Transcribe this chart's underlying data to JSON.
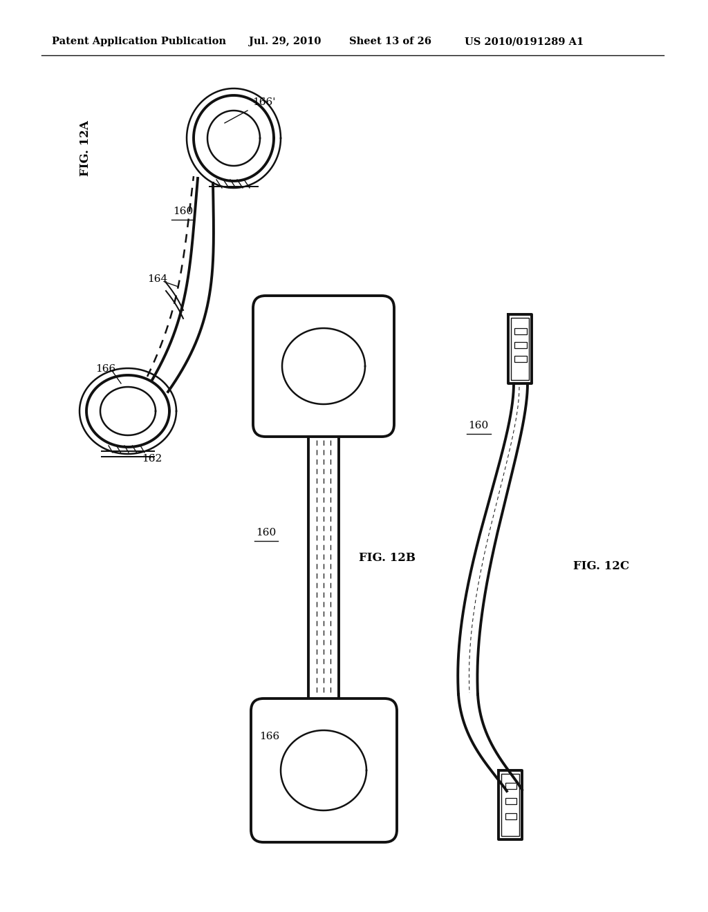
{
  "bg_color": "#ffffff",
  "lc": "#111111",
  "header_text": "Patent Application Publication",
  "header_date": "Jul. 29, 2010",
  "header_sheet": "Sheet 13 of 26",
  "header_patent": "US 2010/0191289 A1",
  "lw_heavy": 2.8,
  "lw_med": 1.8,
  "lw_thin": 1.0,
  "lw_dash": 0.9
}
